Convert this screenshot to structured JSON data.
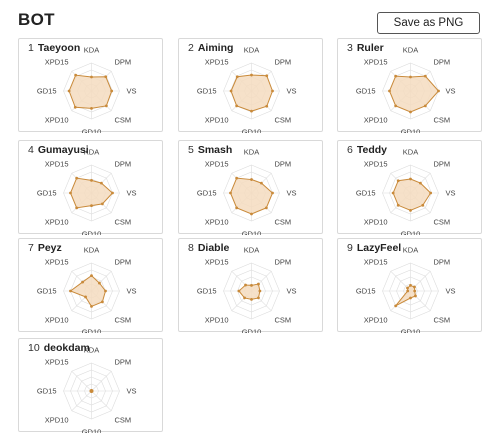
{
  "header": {
    "title": "BOT",
    "save_label": "Save as PNG"
  },
  "axes": [
    "KDA",
    "DPM",
    "VS",
    "CSM",
    "GD10",
    "XPD10",
    "GD15",
    "XPD15"
  ],
  "colors": {
    "fill": "#f4dcc0",
    "stroke": "#c98a3a",
    "grid": "#dddddd",
    "card_border": "#d9d9d9"
  },
  "players": [
    {
      "rank": "1",
      "name": "Taeyoon",
      "values": [
        0.5,
        0.72,
        0.72,
        0.75,
        0.62,
        0.82,
        0.8,
        0.8
      ]
    },
    {
      "rank": "2",
      "name": "Aiming",
      "values": [
        0.57,
        0.77,
        0.75,
        0.77,
        0.72,
        0.75,
        0.73,
        0.72
      ]
    },
    {
      "rank": "3",
      "name": "Ruler",
      "values": [
        0.5,
        0.75,
        1.0,
        0.75,
        0.75,
        0.75,
        0.75,
        0.75
      ]
    },
    {
      "rank": "4",
      "name": "Gumayusi",
      "values": [
        0.45,
        0.5,
        0.75,
        0.55,
        0.45,
        0.75,
        0.75,
        0.75
      ]
    },
    {
      "rank": "5",
      "name": "Smash",
      "values": [
        0.48,
        0.5,
        0.75,
        0.75,
        0.75,
        0.75,
        0.75,
        0.75
      ]
    },
    {
      "rank": "6",
      "name": "Teddy",
      "values": [
        0.5,
        0.5,
        0.72,
        0.62,
        0.62,
        0.62,
        0.62,
        0.62
      ]
    },
    {
      "rank": "7",
      "name": "Peyz",
      "values": [
        0.55,
        0.4,
        0.5,
        0.55,
        0.55,
        0.3,
        0.75,
        0.45
      ]
    },
    {
      "rank": "8",
      "name": "Diable",
      "values": [
        0.2,
        0.35,
        0.3,
        0.35,
        0.3,
        0.35,
        0.45,
        0.3
      ]
    },
    {
      "rank": "9",
      "name": "LazyFeel",
      "values": [
        0.2,
        0.2,
        0.15,
        0.25,
        0.25,
        0.75,
        0.1,
        0.15
      ]
    },
    {
      "rank": "10",
      "name": "deokdam",
      "values": [
        0.02,
        0.02,
        0.02,
        0.02,
        0.02,
        0.02,
        0.02,
        0.02
      ]
    }
  ]
}
